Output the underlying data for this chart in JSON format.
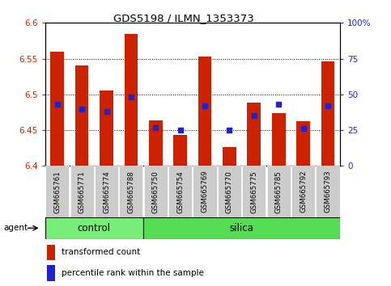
{
  "title": "GDS5198 / ILMN_1353373",
  "samples": [
    "GSM665761",
    "GSM665771",
    "GSM665774",
    "GSM665788",
    "GSM665750",
    "GSM665754",
    "GSM665769",
    "GSM665770",
    "GSM665775",
    "GSM665785",
    "GSM665792",
    "GSM665793"
  ],
  "groups": [
    "control",
    "control",
    "control",
    "control",
    "silica",
    "silica",
    "silica",
    "silica",
    "silica",
    "silica",
    "silica",
    "silica"
  ],
  "transformed_count": [
    6.56,
    6.54,
    6.506,
    6.585,
    6.464,
    6.443,
    6.553,
    6.426,
    6.488,
    6.474,
    6.462,
    6.546
  ],
  "percentile_rank": [
    43,
    40,
    38,
    48,
    27,
    25,
    42,
    25,
    35,
    43,
    26,
    42
  ],
  "ylim": [
    6.4,
    6.6
  ],
  "yticks": [
    6.4,
    6.45,
    6.5,
    6.55,
    6.6
  ],
  "right_yticks": [
    0,
    25,
    50,
    75,
    100
  ],
  "bar_color": "#cc2200",
  "dot_color": "#2222cc",
  "control_color": "#77ee77",
  "silica_color": "#55dd55",
  "sample_bg_color": "#cccccc",
  "axis_label_color_left": "#cc2200",
  "axis_label_color_right": "#2222cc",
  "bar_width": 0.55,
  "agent_label": "agent",
  "legend_items": [
    "transformed count",
    "percentile rank within the sample"
  ],
  "n_control": 4,
  "n_silica": 8
}
